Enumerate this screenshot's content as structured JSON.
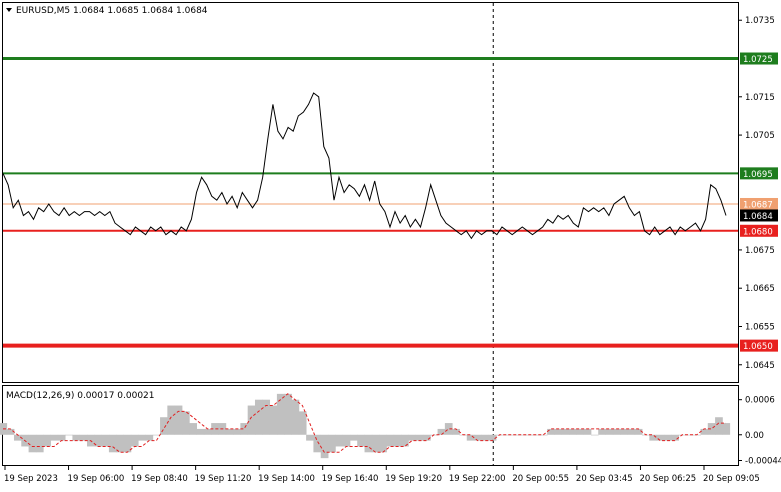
{
  "header": {
    "symbol_line": "EURUSD,M5  1.0684 1.0685 1.0684 1.0684",
    "menu_icon": "triangle-down-icon"
  },
  "macd_label": "MACD(12,26,9) 0.00017 0.00021",
  "colors": {
    "background": "#ffffff",
    "price_line": "#000000",
    "support": "#e8201e",
    "resistance": "#1e7d1e",
    "current_level": "#f0a070",
    "histogram": "#c0c0c0",
    "signal": "#e02020",
    "grid_border": "#000000"
  },
  "chart_data": [
    {
      "type": "line",
      "title": "EURUSD,M5",
      "ylim": [
        1.06405,
        1.07395
      ],
      "y_ticks": [
        "1.0735",
        "1.0715",
        "1.0705",
        "1.0675",
        "1.0665",
        "1.0655",
        "1.0645"
      ],
      "x_ticks": [
        "19 Sep 2023",
        "19 Sep 06:00",
        "19 Sep 08:40",
        "19 Sep 11:20",
        "19 Sep 14:00",
        "19 Sep 16:40",
        "19 Sep 19:20",
        "19 Sep 22:00",
        "20 Sep 00:55",
        "20 Sep 03:45",
        "20 Sep 06:25",
        "20 Sep 09:05"
      ],
      "levels": [
        {
          "value": 1.0725,
          "label": "1.0725",
          "kind": "resistance"
        },
        {
          "value": 1.0695,
          "label": "1.0695",
          "kind": "resistance"
        },
        {
          "value": 1.0687,
          "label": "1.0687",
          "kind": "current"
        },
        {
          "value": 1.068,
          "label": "1.0680",
          "kind": "support"
        },
        {
          "value": 1.065,
          "label": "1.0650",
          "kind": "support"
        }
      ],
      "current_price": {
        "value": 1.0684,
        "label": "1.0684"
      },
      "session_divider_index": 0.667,
      "series": [
        {
          "values": [
            1.0695,
            1.0692,
            1.0686,
            1.0688,
            1.0684,
            1.0685,
            1.0683,
            1.0686,
            1.0685,
            1.0687,
            1.0685,
            1.0684,
            1.0686,
            1.0684,
            1.0685,
            1.0684,
            1.0685,
            1.0685,
            1.0684,
            1.0685,
            1.0684,
            1.0685,
            1.0682,
            1.0681,
            1.068,
            1.0679,
            1.0681,
            1.068,
            1.0679,
            1.0681,
            1.068,
            1.0681,
            1.0679,
            1.068,
            1.0679,
            1.0681,
            1.068,
            1.0683,
            1.069,
            1.0694,
            1.0692,
            1.0689,
            1.0688,
            1.069,
            1.0687,
            1.0689,
            1.0686,
            1.069,
            1.0688,
            1.0686,
            1.0688,
            1.0694,
            1.0704,
            1.0713,
            1.0706,
            1.0704,
            1.0707,
            1.0706,
            1.071,
            1.0711,
            1.0713,
            1.0716,
            1.0715,
            1.0702,
            1.0699,
            1.0688,
            1.0694,
            1.069,
            1.0692,
            1.0691,
            1.0689,
            1.0692,
            1.0688,
            1.0693,
            1.0687,
            1.0685,
            1.0681,
            1.0685,
            1.0682,
            1.0684,
            1.0681,
            1.0683,
            1.0681,
            1.0686,
            1.0692,
            1.0688,
            1.0684,
            1.0682,
            1.0681,
            1.068,
            1.0679,
            1.068,
            1.0678,
            1.068,
            1.0679,
            1.068,
            1.068,
            1.0679,
            1.0681,
            1.068,
            1.0679,
            1.068,
            1.0681,
            1.068,
            1.0679,
            1.068,
            1.0681,
            1.0683,
            1.0682,
            1.0684,
            1.0683,
            1.0684,
            1.0682,
            1.0681,
            1.0686,
            1.0685,
            1.0686,
            1.0685,
            1.0686,
            1.0684,
            1.0687,
            1.0688,
            1.0689,
            1.0686,
            1.0684,
            1.0685,
            1.068,
            1.0679,
            1.0681,
            1.0679,
            1.068,
            1.0681,
            1.0679,
            1.0681,
            1.068,
            1.0681,
            1.0682,
            1.068,
            1.0683,
            1.0692,
            1.0691,
            1.0688,
            1.0684
          ]
        }
      ]
    },
    {
      "type": "bar",
      "title": "MACD(12,26,9)",
      "ylim": [
        -0.0005,
        0.0008
      ],
      "y_ticks": [
        "0.0006",
        "0.00",
        "-0.00044"
      ],
      "series": [
        {
          "values": [
            0.0002,
            0.0001,
            -0.0001,
            -0.0002,
            -0.0003,
            -0.0003,
            -0.0002,
            -0.0001,
            -0.0001,
            0.0,
            -0.0001,
            -0.0001,
            -0.0002,
            -0.0002,
            -0.0002,
            -0.0003,
            -0.0003,
            -0.0003,
            -0.0002,
            -0.0001,
            -0.0001,
            0.0,
            0.0003,
            0.0005,
            0.0005,
            0.0004,
            0.0002,
            0.0001,
            0.0001,
            0.0002,
            0.0002,
            0.0001,
            0.0001,
            0.0002,
            0.0005,
            0.0006,
            0.0006,
            0.0005,
            0.0007,
            0.0007,
            0.0006,
            0.0004,
            -0.0001,
            -0.0003,
            -0.0004,
            -0.0003,
            -0.0002,
            -0.0002,
            -0.0001,
            -0.0002,
            -0.0003,
            -0.0003,
            -0.0003,
            -0.0002,
            -0.0002,
            -0.0002,
            -0.0001,
            -0.0001,
            -0.0001,
            0.0,
            0.0001,
            0.0002,
            0.0001,
            0.0,
            -0.0001,
            -0.0001,
            -0.0001,
            -0.0001,
            0.0,
            0.0,
            0.0,
            0.0,
            0.0,
            0.0,
            0.0,
            0.0001,
            0.0001,
            0.0001,
            0.0001,
            0.0001,
            0.0001,
            0.0,
            0.0001,
            0.0001,
            0.0001,
            0.0001,
            0.0001,
            0.0001,
            0.0,
            -0.0001,
            -0.0001,
            -0.0001,
            -0.0001,
            0.0,
            0.0,
            0.0,
            0.0001,
            0.0002,
            0.0003,
            0.0002
          ]
        },
        {
          "values": [
            0.0001,
            0.0001,
            0.0,
            -0.0001,
            -0.0002,
            -0.0002,
            -0.0002,
            -0.0002,
            -0.0001,
            -0.0001,
            -0.0001,
            -0.0001,
            -0.0001,
            -0.0002,
            -0.0002,
            -0.0002,
            -0.0003,
            -0.0003,
            -0.0002,
            -0.0002,
            -0.0001,
            -0.0001,
            0.0001,
            0.0003,
            0.0004,
            0.0004,
            0.0003,
            0.0002,
            0.0001,
            0.0001,
            0.0001,
            0.0001,
            0.0001,
            0.0001,
            0.0003,
            0.0004,
            0.0005,
            0.0005,
            0.0006,
            0.0007,
            0.0006,
            0.0005,
            0.0002,
            -0.0001,
            -0.0003,
            -0.0003,
            -0.0003,
            -0.0002,
            -0.0002,
            -0.0002,
            -0.0002,
            -0.0003,
            -0.0003,
            -0.0002,
            -0.0002,
            -0.0002,
            -0.0001,
            -0.0001,
            -0.0001,
            0.0,
            0.0,
            0.0001,
            0.0001,
            0.0,
            0.0,
            -0.0001,
            -0.0001,
            -0.0001,
            0.0,
            0.0,
            0.0,
            0.0,
            0.0,
            0.0,
            0.0,
            0.0001,
            0.0001,
            0.0001,
            0.0001,
            0.0001,
            0.0001,
            0.0001,
            0.0001,
            0.0001,
            0.0001,
            0.0001,
            0.0001,
            0.0001,
            0.0,
            0.0,
            -0.0001,
            -0.0001,
            -0.0001,
            0.0,
            0.0,
            0.0,
            0.0001,
            0.0001,
            0.0002,
            0.0002
          ]
        }
      ]
    }
  ]
}
